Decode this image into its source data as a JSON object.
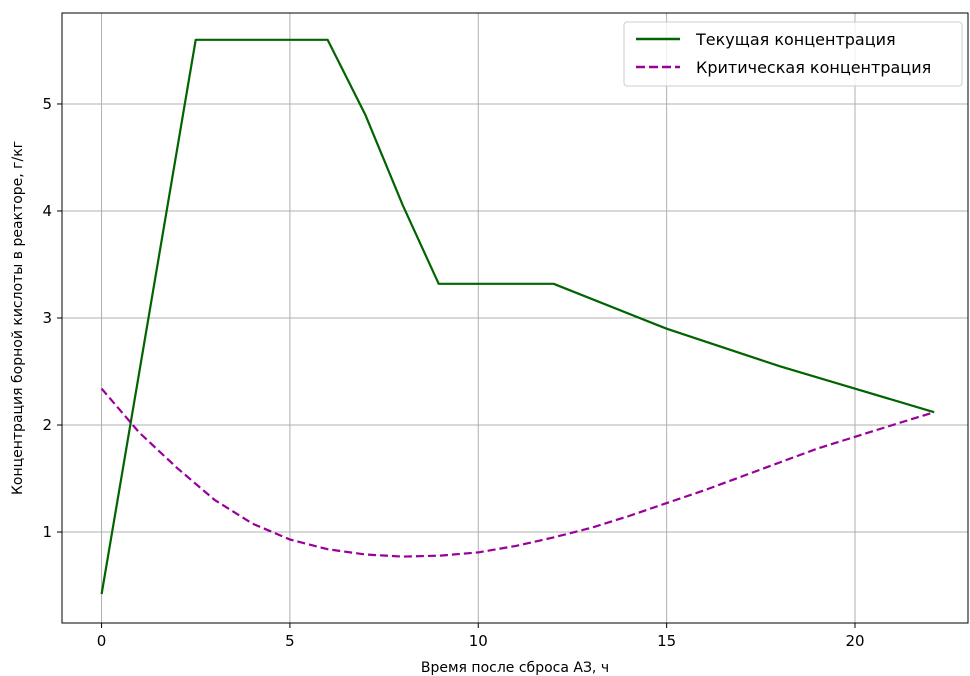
{
  "chart_data": {
    "type": "line",
    "xlabel": "Время после сброса АЗ, ч",
    "ylabel": "Концентрация борной кислоты в реакторе, г/кг",
    "xlim": [
      -1.05,
      23.0
    ],
    "ylim": [
      0.15,
      5.85
    ],
    "xticks": [
      0,
      5,
      10,
      15,
      20
    ],
    "yticks": [
      1,
      2,
      3,
      4,
      5
    ],
    "grid": true,
    "legend_position": "top-right",
    "series": [
      {
        "name": "Текущая концентрация",
        "color": "#006400",
        "dash": "solid",
        "points": [
          [
            0,
            0.42
          ],
          [
            2.5,
            5.6
          ],
          [
            6.0,
            5.6
          ],
          [
            7.0,
            4.9
          ],
          [
            8.0,
            4.05
          ],
          [
            8.95,
            3.32
          ],
          [
            12.0,
            3.32
          ],
          [
            15.0,
            2.9
          ],
          [
            18.0,
            2.55
          ],
          [
            22.1,
            2.12
          ]
        ]
      },
      {
        "name": "Критическая концентрация",
        "color": "#990099",
        "dash": "dashed",
        "points": [
          [
            0,
            2.34
          ],
          [
            1,
            1.93
          ],
          [
            2,
            1.6
          ],
          [
            3,
            1.3
          ],
          [
            4,
            1.08
          ],
          [
            5,
            0.93
          ],
          [
            6,
            0.84
          ],
          [
            7,
            0.79
          ],
          [
            8,
            0.77
          ],
          [
            9,
            0.78
          ],
          [
            10,
            0.81
          ],
          [
            11,
            0.87
          ],
          [
            12,
            0.95
          ],
          [
            13,
            1.04
          ],
          [
            14,
            1.15
          ],
          [
            15,
            1.27
          ],
          [
            16,
            1.39
          ],
          [
            17,
            1.52
          ],
          [
            18,
            1.65
          ],
          [
            19,
            1.78
          ],
          [
            20,
            1.89
          ],
          [
            21,
            2.0
          ],
          [
            22.1,
            2.12
          ]
        ]
      }
    ]
  }
}
